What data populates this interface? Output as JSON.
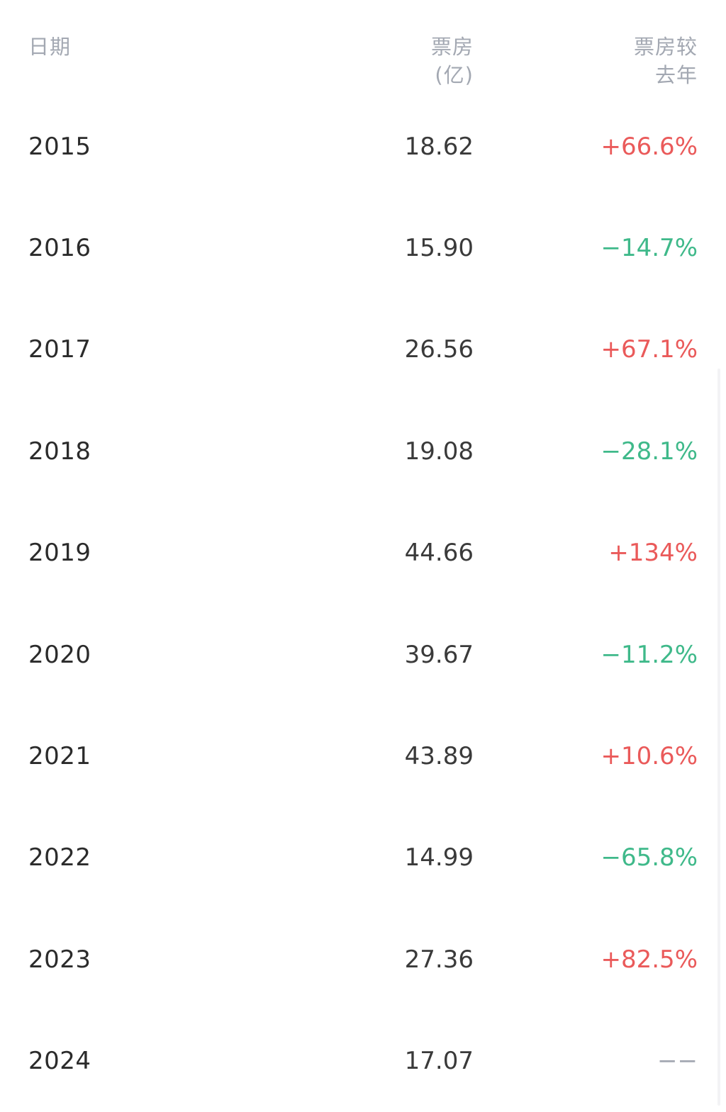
{
  "header": {
    "date_label": "日期",
    "box_label_line1": "票房",
    "box_label_line2": "(亿)",
    "change_label_line1": "票房较",
    "change_label_line2": "去年"
  },
  "rows": [
    {
      "year": "2015",
      "box": "18.62",
      "change": "+66.6%",
      "trend": "up"
    },
    {
      "year": "2016",
      "box": "15.90",
      "change": "−14.7%",
      "trend": "down"
    },
    {
      "year": "2017",
      "box": "26.56",
      "change": "+67.1%",
      "trend": "up"
    },
    {
      "year": "2018",
      "box": "19.08",
      "change": "−28.1%",
      "trend": "down"
    },
    {
      "year": "2019",
      "box": "44.66",
      "change": "+134%",
      "trend": "up"
    },
    {
      "year": "2020",
      "box": "39.67",
      "change": "−11.2%",
      "trend": "down"
    },
    {
      "year": "2021",
      "box": "43.89",
      "change": "+10.6%",
      "trend": "up"
    },
    {
      "year": "2022",
      "box": "14.99",
      "change": "−65.8%",
      "trend": "down"
    },
    {
      "year": "2023",
      "box": "27.36",
      "change": "+82.5%",
      "trend": "up"
    },
    {
      "year": "2024",
      "box": "17.07",
      "change": "−−",
      "trend": "none"
    }
  ],
  "colors": {
    "up": "#ea5a5a",
    "down": "#3fb98a",
    "header": "#a3a8b2"
  }
}
